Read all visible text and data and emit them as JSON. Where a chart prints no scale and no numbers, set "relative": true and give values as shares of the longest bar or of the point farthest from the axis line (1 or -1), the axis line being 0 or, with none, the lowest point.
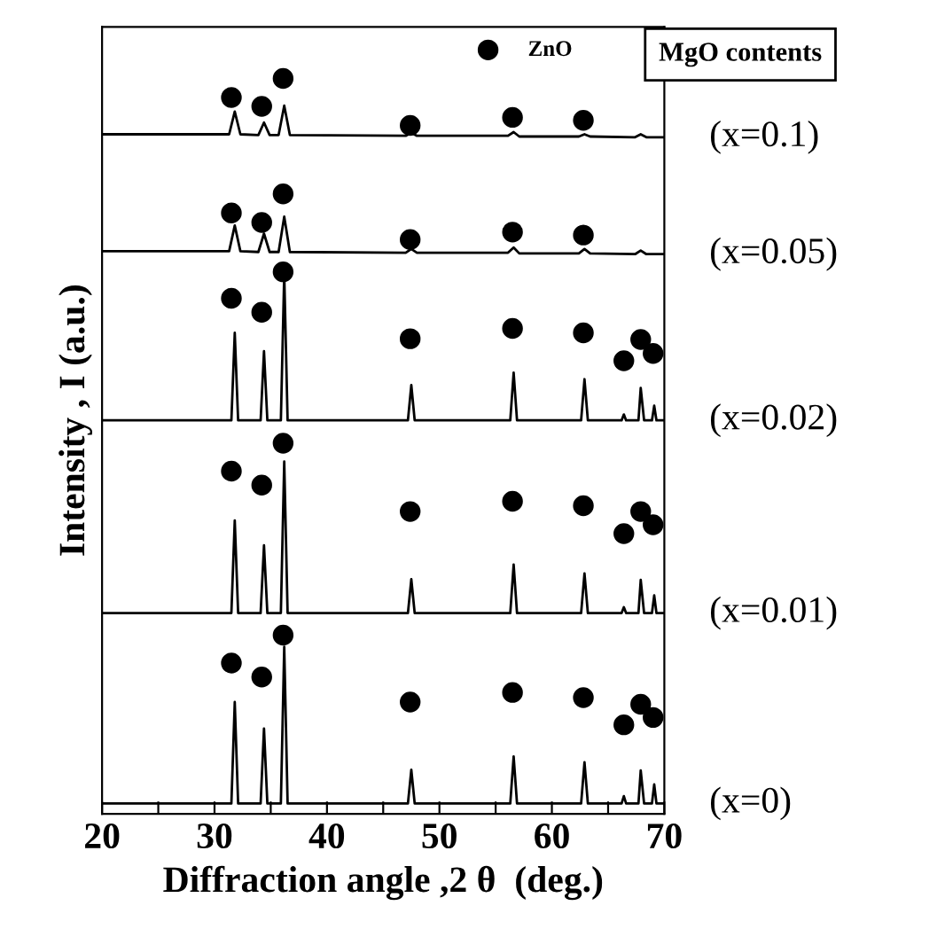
{
  "chart_data": {
    "type": "line",
    "relative": true,
    "xlabel": "Diffraction angle ,2 θ  (deg.)",
    "ylabel": "Intensity , I (a.u.)",
    "annotations": [
      "MgO contents"
    ],
    "xlim": [
      20,
      70
    ],
    "xticks": [
      20,
      {
        "value": 25,
        "label": null
      },
      30,
      {
        "value": 35,
        "label": null
      },
      40,
      {
        "value": 45,
        "label": null
      },
      50,
      {
        "value": 55,
        "label": null
      },
      60,
      {
        "value": 65,
        "label": null
      },
      70
    ],
    "tick_labels": "x",
    "grid": false,
    "legend": "top right",
    "marker": "none",
    "line_style": "solid",
    "series": [
      {
        "name": "(x=0.1)",
        "color": "#000000",
        "x": [
          20,
          31.3,
          31.8,
          32.3,
          33.9,
          34.4,
          34.9,
          35.7,
          36.2,
          36.7,
          47.0,
          47.5,
          48.0,
          56.1,
          56.6,
          57.1,
          62.4,
          62.9,
          63.4,
          67.4,
          67.9,
          68.4,
          70
        ],
        "values": [
          0.924,
          0.924,
          0.955,
          0.924,
          0.923,
          0.94,
          0.923,
          0.923,
          0.963,
          0.923,
          0.922,
          0.926,
          0.922,
          0.922,
          0.927,
          0.921,
          0.921,
          0.924,
          0.921,
          0.92,
          0.924,
          0.92,
          0.92
        ]
      },
      {
        "name": "(x=0.05)",
        "color": "#000000",
        "x": [
          20,
          31.3,
          31.8,
          32.3,
          33.9,
          34.4,
          34.9,
          35.7,
          36.2,
          36.7,
          47.0,
          47.5,
          48.0,
          56.1,
          56.6,
          57.1,
          62.4,
          62.9,
          63.4,
          67.4,
          67.9,
          68.4,
          70
        ],
        "values": [
          0.765,
          0.765,
          0.8,
          0.765,
          0.764,
          0.789,
          0.764,
          0.764,
          0.812,
          0.764,
          0.763,
          0.768,
          0.763,
          0.763,
          0.77,
          0.762,
          0.762,
          0.768,
          0.762,
          0.761,
          0.766,
          0.761,
          0.761
        ]
      },
      {
        "name": "(x=0.02)",
        "color": "#000000",
        "x": [
          20,
          31.5,
          31.8,
          32.1,
          34.1,
          34.4,
          34.7,
          35.9,
          36.2,
          36.5,
          47.2,
          47.5,
          47.8,
          56.3,
          56.6,
          56.9,
          62.6,
          62.9,
          63.2,
          66.2,
          66.4,
          66.6,
          67.7,
          67.9,
          68.2,
          68.9,
          69.1,
          69.3,
          70
        ],
        "values": [
          0.535,
          0.535,
          0.654,
          0.535,
          0.535,
          0.629,
          0.535,
          0.535,
          0.734,
          0.535,
          0.535,
          0.583,
          0.535,
          0.535,
          0.6,
          0.535,
          0.535,
          0.591,
          0.535,
          0.535,
          0.543,
          0.535,
          0.535,
          0.579,
          0.535,
          0.535,
          0.555,
          0.535,
          0.535
        ]
      },
      {
        "name": "(x=0.01)",
        "color": "#000000",
        "x": [
          20,
          31.5,
          31.8,
          32.1,
          34.1,
          34.4,
          34.7,
          35.9,
          36.2,
          36.5,
          47.2,
          47.5,
          47.8,
          56.3,
          56.6,
          56.9,
          62.6,
          62.9,
          63.2,
          66.2,
          66.4,
          66.6,
          67.7,
          67.9,
          68.2,
          68.9,
          69.1,
          69.3,
          70
        ],
        "values": [
          0.273,
          0.273,
          0.399,
          0.273,
          0.273,
          0.365,
          0.273,
          0.273,
          0.479,
          0.273,
          0.273,
          0.319,
          0.273,
          0.273,
          0.339,
          0.273,
          0.273,
          0.327,
          0.273,
          0.273,
          0.281,
          0.273,
          0.273,
          0.318,
          0.273,
          0.273,
          0.297,
          0.273,
          0.273
        ]
      },
      {
        "name": "(x=0)",
        "color": "#000000",
        "x": [
          20,
          31.5,
          31.8,
          32.1,
          34.1,
          34.4,
          34.7,
          35.9,
          36.2,
          36.5,
          47.2,
          47.5,
          47.8,
          56.3,
          56.6,
          56.9,
          62.6,
          62.9,
          63.2,
          66.2,
          66.4,
          66.6,
          67.7,
          67.9,
          68.2,
          68.9,
          69.1,
          69.3,
          70
        ],
        "values": [
          0.014,
          0.014,
          0.152,
          0.014,
          0.014,
          0.116,
          0.014,
          0.014,
          0.227,
          0.014,
          0.014,
          0.06,
          0.014,
          0.014,
          0.078,
          0.014,
          0.014,
          0.07,
          0.014,
          0.014,
          0.024,
          0.014,
          0.014,
          0.059,
          0.014,
          0.014,
          0.04,
          0.014,
          0.014
        ]
      },
      {
        "name": "ZnO",
        "type": "scatter",
        "marker": "circle",
        "color": "#000000",
        "x": [
          31.5,
          34.2,
          36.1,
          47.4,
          56.5,
          62.8,
          31.5,
          34.2,
          36.1,
          47.4,
          56.5,
          62.8,
          31.5,
          34.2,
          36.1,
          47.4,
          56.5,
          62.8,
          66.4,
          67.9,
          69.0,
          31.5,
          34.2,
          36.1,
          47.4,
          56.5,
          62.8,
          66.4,
          67.9,
          69.0,
          31.5,
          34.2,
          36.1,
          47.4,
          56.5,
          62.8,
          66.4,
          67.9,
          69.0
        ],
        "values": [
          0.974,
          0.962,
          1.0,
          0.936,
          0.947,
          0.943,
          0.817,
          0.804,
          0.843,
          0.781,
          0.791,
          0.787,
          0.701,
          0.682,
          0.737,
          0.646,
          0.66,
          0.654,
          0.616,
          0.645,
          0.626,
          0.466,
          0.447,
          0.504,
          0.411,
          0.425,
          0.419,
          0.381,
          0.411,
          0.393,
          0.205,
          0.186,
          0.243,
          0.152,
          0.165,
          0.158,
          0.121,
          0.149,
          0.131
        ]
      }
    ]
  }
}
